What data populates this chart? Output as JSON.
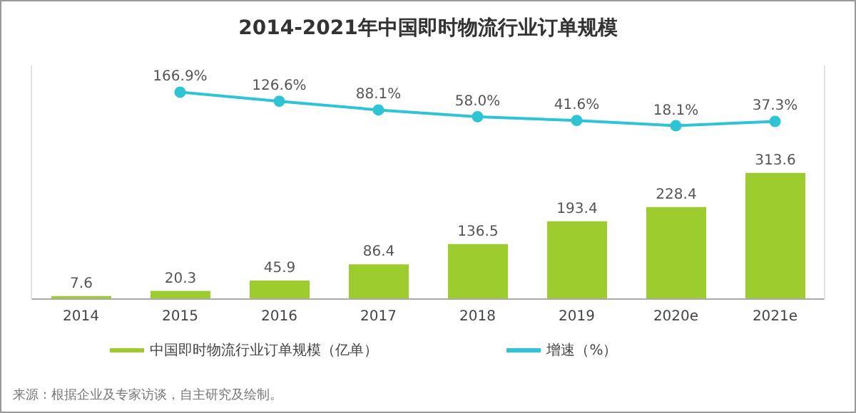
{
  "chart_data": {
    "type": "bar",
    "title": "2014-2021年中国即时物流行业订单规模",
    "categories": [
      "2014",
      "2015",
      "2016",
      "2017",
      "2018",
      "2019",
      "2020e",
      "2021e"
    ],
    "series": [
      {
        "name": "中国即时物流行业订单规模（亿单）",
        "color": "#9ccc2e",
        "values": [
          7.6,
          20.3,
          45.9,
          86.4,
          136.5,
          193.4,
          228.4,
          313.6
        ],
        "data_labels": true
      },
      {
        "name": "增速（%）",
        "type": "line",
        "axis": "y2",
        "color": "#2ec4d6",
        "values": [
          null,
          166.9,
          126.6,
          88.1,
          58.0,
          41.6,
          18.1,
          37.3
        ],
        "value_labels": [
          null,
          "166.9%",
          "126.6%",
          "88.1%",
          "58.0%",
          "41.6%",
          "18.1%",
          "37.3%"
        ],
        "marker": "circle"
      }
    ],
    "ylim": [
      0,
      580
    ],
    "y2lim": [
      -750,
      285
    ],
    "tick_labels": "x",
    "legend": "bottom",
    "annotations": [
      "来源：根据企业及专家访谈，自主研究及绘制。"
    ]
  }
}
